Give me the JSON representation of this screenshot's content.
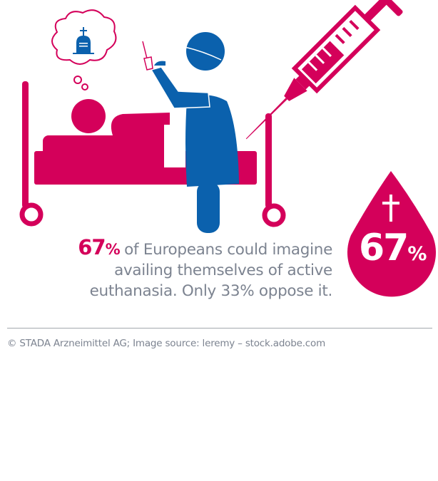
{
  "colors": {
    "accent": "#d4005a",
    "doctor": "#0b61ad",
    "text": "#7c8390"
  },
  "illustration": {
    "icons": [
      "hospital-bed-icon",
      "patient-icon",
      "thought-bubble-icon",
      "gravestone-icon",
      "doctor-icon",
      "syringe-icon",
      "drop-icon",
      "cross-icon"
    ]
  },
  "drop": {
    "value": "67",
    "unit": "%"
  },
  "statement": {
    "highlight_value": "67",
    "highlight_unit": "%",
    "line1": " of Europeans could imagine",
    "line2": "availing themselves of active",
    "line3": "euthanasia. Only 33% oppose it."
  },
  "footer": {
    "credit": "© STADA Arzneimittel AG; Image source: leremy – stock.adobe.com"
  }
}
